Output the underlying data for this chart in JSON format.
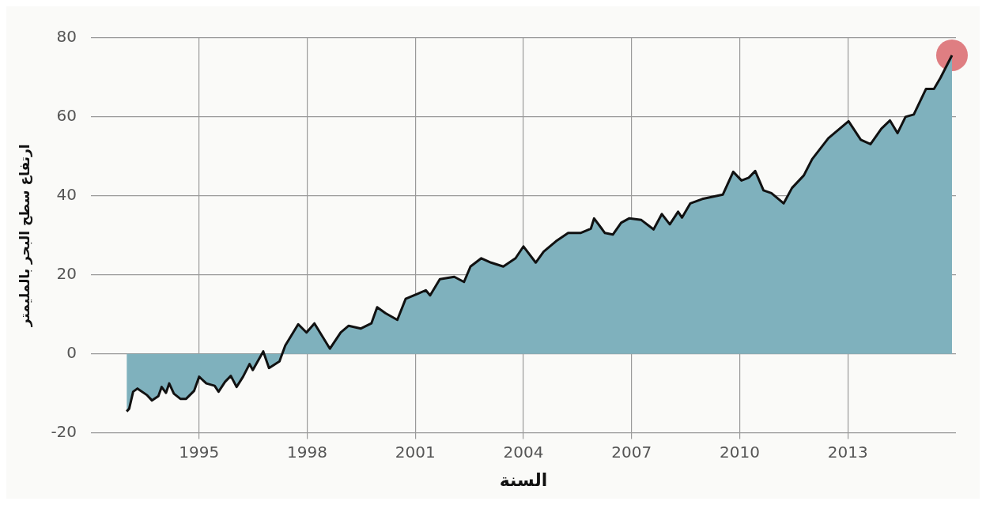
{
  "chart_data": {
    "type": "area",
    "xlabel": "السنة",
    "ylabel": "ارتفاع سطح البحر بالمليمتر",
    "xlim": [
      1992,
      2016
    ],
    "xticks": [
      1995,
      1998,
      2001,
      2004,
      2007,
      2010,
      2013
    ],
    "ylim": [
      -20,
      80
    ],
    "yticks": [
      -20,
      0,
      20,
      40,
      60,
      80
    ],
    "grid": true,
    "legend": false,
    "x": [
      1992.99,
      1993.06,
      1993.17,
      1993.29,
      1993.56,
      1993.69,
      1993.87,
      1993.96,
      1994.08,
      1994.17,
      1994.3,
      1994.48,
      1994.64,
      1994.86,
      1995.0,
      1995.2,
      1995.43,
      1995.54,
      1995.72,
      1995.88,
      1996.04,
      1996.22,
      1996.4,
      1996.49,
      1996.78,
      1996.94,
      1997.23,
      1997.39,
      1997.75,
      1997.98,
      1998.2,
      1998.63,
      1998.93,
      1999.15,
      1999.49,
      1999.78,
      1999.94,
      2000.17,
      2000.5,
      2000.73,
      2001.07,
      2001.29,
      2001.41,
      2001.68,
      2002.08,
      2002.35,
      2002.53,
      2002.83,
      2003.1,
      2003.44,
      2003.78,
      2004.0,
      2004.34,
      2004.56,
      2004.9,
      2005.24,
      2005.58,
      2005.87,
      2005.96,
      2006.26,
      2006.48,
      2006.71,
      2006.93,
      2007.27,
      2007.61,
      2007.84,
      2008.06,
      2008.29,
      2008.4,
      2008.63,
      2008.96,
      2009.53,
      2009.82,
      2010.05,
      2010.25,
      2010.43,
      2010.66,
      2010.88,
      2011.22,
      2011.45,
      2011.78,
      2012.01,
      2012.46,
      2013.02,
      2013.36,
      2013.63,
      2013.93,
      2014.17,
      2014.38,
      2014.6,
      2014.83,
      2015.17,
      2015.39,
      2015.57,
      2015.89
    ],
    "series": [
      {
        "color": "#7fb1bd",
        "values": [
          -14.6,
          -13.9,
          -9.6,
          -8.8,
          -10.5,
          -11.8,
          -10.7,
          -8.4,
          -9.9,
          -7.5,
          -10.1,
          -11.4,
          -11.4,
          -9.4,
          -5.8,
          -7.5,
          -8.1,
          -9.6,
          -7.1,
          -5.6,
          -8.4,
          -5.8,
          -2.6,
          -4.1,
          0.6,
          -3.6,
          -1.9,
          2.1,
          7.5,
          5.4,
          7.7,
          1.3,
          5.4,
          7.1,
          6.4,
          7.7,
          11.8,
          10.3,
          8.6,
          13.9,
          15.2,
          16.1,
          14.8,
          18.9,
          19.5,
          18.2,
          22.1,
          24.2,
          23.1,
          22.1,
          24.2,
          27.2,
          23.1,
          25.9,
          28.5,
          30.6,
          30.6,
          31.7,
          34.3,
          30.6,
          30.2,
          33.2,
          34.3,
          33.9,
          31.5,
          35.4,
          32.8,
          36.0,
          34.5,
          38.1,
          39.2,
          40.3,
          46.1,
          43.9,
          44.6,
          46.3,
          41.4,
          40.7,
          38.1,
          42.0,
          45.2,
          49.3,
          54.6,
          58.9,
          54.2,
          53.1,
          57.0,
          59.1,
          55.9,
          60.0,
          60.6,
          67.1,
          67.1,
          69.9,
          75.6
        ]
      },
      {
        "type": "scatter",
        "color": "#d9676d",
        "marker": "circle",
        "x": [
          2015.89
        ],
        "values": [
          75.6
        ]
      }
    ]
  }
}
